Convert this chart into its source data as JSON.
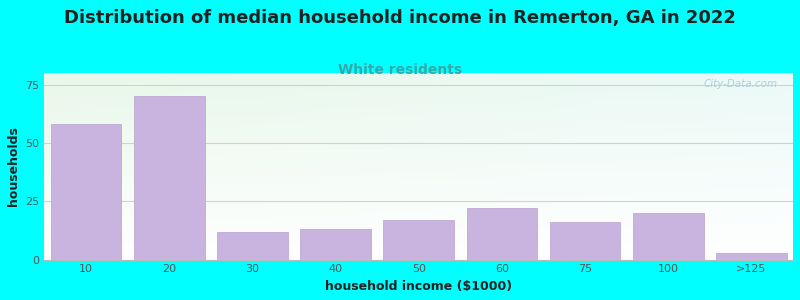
{
  "title": "Distribution of median household income in Remerton, GA in 2022",
  "subtitle": "White residents",
  "xlabel": "household income ($1000)",
  "ylabel": "households",
  "background_color": "#00FFFF",
  "bar_color": "#c9b4e0",
  "bar_edge_color": "#b8a0d0",
  "categories": [
    "10",
    "20",
    "30",
    "40",
    "50",
    "60",
    "75",
    "100",
    ">125"
  ],
  "values": [
    58,
    70,
    12,
    13,
    17,
    22,
    16,
    20,
    3
  ],
  "ylim": [
    0,
    80
  ],
  "yticks": [
    0,
    25,
    50,
    75
  ],
  "title_fontsize": 13,
  "subtitle_fontsize": 10,
  "subtitle_color": "#33aaaa",
  "axis_label_fontsize": 9,
  "title_color": "#222222",
  "watermark_text": "City-Data.com",
  "watermark_color": "#aac8d8",
  "grid_color": "#ddcccc",
  "tick_label_color": "#555555"
}
